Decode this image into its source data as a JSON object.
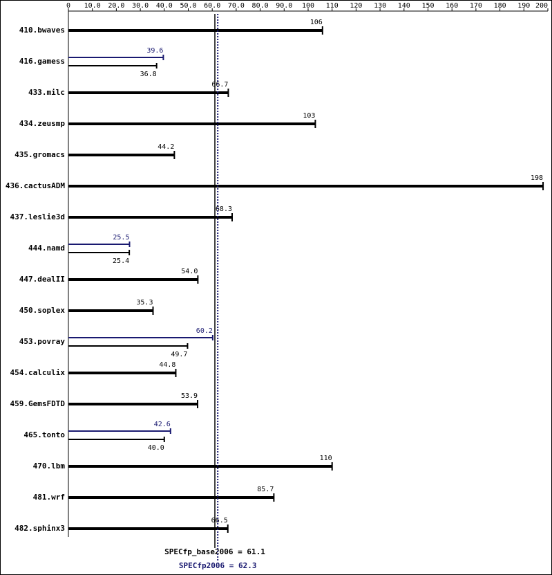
{
  "chart_data": {
    "type": "bar",
    "orientation": "horizontal",
    "categories": [
      "410.bwaves",
      "416.gamess",
      "433.milc",
      "434.zeusmp",
      "435.gromacs",
      "436.cactusADM",
      "437.leslie3d",
      "444.namd",
      "447.dealII",
      "450.soplex",
      "453.povray",
      "454.calculix",
      "459.GemsFDTD",
      "465.tonto",
      "470.lbm",
      "481.wrf",
      "482.sphinx3"
    ],
    "series": [
      {
        "color": "#000000",
        "values": [
          106,
          36.8,
          66.7,
          103,
          44.2,
          198,
          68.3,
          25.4,
          54.0,
          35.3,
          49.7,
          44.8,
          53.9,
          40.0,
          110,
          85.7,
          66.5
        ],
        "value_labels": [
          "106",
          "36.8",
          "66.7",
          "103",
          "44.2",
          "198",
          "68.3",
          "25.4",
          "54.0",
          "35.3",
          "49.7",
          "44.8",
          "53.9",
          "40.0",
          "110",
          "85.7",
          "66.5"
        ]
      },
      {
        "color": "#191970",
        "values": [
          null,
          39.6,
          null,
          null,
          null,
          null,
          null,
          25.5,
          null,
          null,
          60.2,
          null,
          null,
          42.6,
          null,
          null,
          null
        ],
        "value_labels": [
          null,
          "39.6",
          null,
          null,
          null,
          null,
          null,
          "25.5",
          null,
          null,
          "60.2",
          null,
          null,
          "42.6",
          null,
          null,
          null
        ]
      }
    ],
    "xlim": [
      0,
      200
    ],
    "xticks": [
      0,
      {
        "value": 10,
        "label": "10.0"
      },
      {
        "value": 20,
        "label": "20.0"
      },
      {
        "value": 30,
        "label": "30.0"
      },
      {
        "value": 40,
        "label": "40.0"
      },
      {
        "value": 50,
        "label": "50.0"
      },
      {
        "value": 60,
        "label": "60.0"
      },
      {
        "value": 70,
        "label": "70.0"
      },
      {
        "value": 80,
        "label": "80.0"
      },
      {
        "value": 90,
        "label": "90.0"
      },
      100,
      110,
      120,
      130,
      140,
      150,
      160,
      170,
      180,
      190,
      200
    ],
    "reference_lines": [
      {
        "label": "SPECfp_base2006 = 61.1",
        "value": 61.1,
        "color": "#000000",
        "style": "solid"
      },
      {
        "label": "SPECfp2006 = 62.3",
        "value": 62.3,
        "color": "#191970",
        "style": "dotted"
      }
    ]
  }
}
